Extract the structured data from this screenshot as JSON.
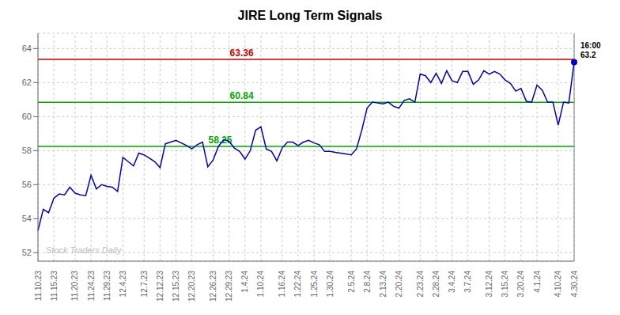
{
  "chart_data": {
    "type": "line",
    "title": "JIRE Long Term Signals",
    "watermark": "Stock Traders Daily",
    "color": "#0000cc",
    "grid": true,
    "last_point_label": "16:00",
    "categories": [
      "11.10.23",
      null,
      null,
      "11.15.23",
      null,
      null,
      null,
      "11.20.23",
      null,
      null,
      "11.24.23",
      null,
      null,
      "11.29.23",
      null,
      null,
      "12.4.23",
      null,
      null,
      null,
      "12.7.23",
      null,
      null,
      "12.12.23",
      null,
      null,
      "12.15.23",
      null,
      null,
      "12.20.23",
      null,
      null,
      null,
      "12.26.23",
      null,
      null,
      "12.29.23",
      null,
      null,
      "1.4.24",
      null,
      null,
      "1.10.24",
      null,
      null,
      null,
      "1.16.24",
      null,
      null,
      "1.22.24",
      null,
      null,
      "1.25.24",
      null,
      null,
      "1.30.24",
      null,
      null,
      null,
      "2.5.24",
      null,
      null,
      "2.8.24",
      null,
      null,
      "2.13.24",
      null,
      null,
      "2.20.24",
      null,
      null,
      null,
      "2.23.24",
      null,
      null,
      "2.28.24",
      null,
      null,
      "3.4.24",
      null,
      null,
      "3.7.24",
      null,
      null,
      null,
      "3.12.24",
      null,
      null,
      "3.15.24",
      null,
      null,
      "3.20.24",
      null,
      null,
      "4.1.24",
      null,
      null,
      null,
      "4.10.24",
      null,
      null,
      "4.30.24"
    ],
    "values": [
      53.3,
      54.55,
      54.35,
      55.2,
      55.45,
      55.4,
      55.85,
      55.5,
      55.4,
      55.35,
      56.55,
      55.75,
      56.0,
      55.9,
      55.85,
      55.6,
      57.6,
      57.35,
      57.1,
      57.85,
      57.75,
      57.55,
      57.35,
      57.0,
      58.4,
      58.5,
      58.6,
      58.45,
      58.3,
      58.1,
      58.35,
      58.5,
      57.05,
      57.45,
      58.25,
      58.65,
      58.55,
      58.15,
      57.95,
      57.5,
      58.0,
      59.2,
      59.4,
      58.1,
      57.95,
      57.4,
      58.15,
      58.5,
      58.5,
      58.3,
      58.5,
      58.6,
      58.45,
      58.35,
      57.95,
      57.95,
      57.9,
      57.85,
      57.8,
      57.75,
      58.1,
      59.2,
      60.5,
      60.85,
      60.8,
      60.75,
      60.85,
      60.6,
      60.5,
      60.95,
      61.05,
      60.85,
      62.5,
      62.4,
      62.0,
      62.55,
      61.95,
      62.7,
      62.1,
      62.0,
      62.65,
      62.65,
      61.9,
      62.15,
      62.7,
      62.5,
      62.65,
      62.5,
      62.15,
      61.95,
      61.5,
      61.65,
      60.9,
      60.85,
      61.85,
      61.55,
      60.85,
      60.85,
      59.5,
      60.85,
      60.8,
      63.2
    ],
    "hlines": [
      {
        "value": 63.36,
        "color": "#cc0000"
      },
      {
        "value": 60.84,
        "color": "#00aa00"
      },
      {
        "value": 58.25,
        "color": "#00aa00"
      }
    ],
    "ylim": [
      51.5,
      64.9
    ],
    "yticks": [
      52,
      54,
      56,
      58,
      60,
      62,
      64
    ]
  }
}
